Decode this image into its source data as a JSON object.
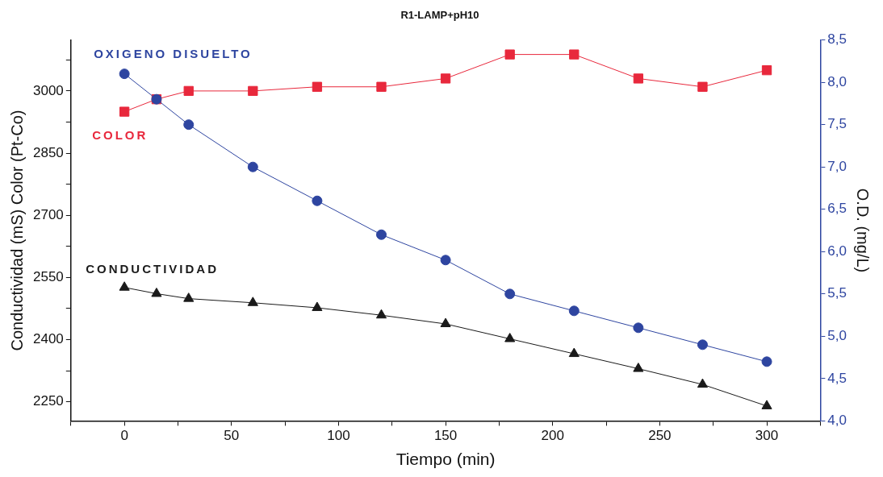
{
  "chart_data": {
    "type": "line",
    "title": "R1-LAMP+pH10",
    "xlabel": "Tiempo (min)",
    "ylabel": "Conductividad (mS) Color (Pt-Co)",
    "y2label": "O.D. (mg/L)",
    "x": [
      0,
      15,
      30,
      60,
      90,
      120,
      150,
      180,
      210,
      240,
      270,
      300
    ],
    "series": [
      {
        "name": "COLOR",
        "color": "#e8283c",
        "marker": "square",
        "values": [
          2950,
          2980,
          3000,
          3000,
          3010,
          3010,
          3030,
          3088,
          3088,
          3030,
          3010,
          3050
        ]
      },
      {
        "name": "CONDUCTIVIDAD",
        "color": "#1a1a1a",
        "marker": "triangle",
        "values": [
          2526,
          2511,
          2499,
          2489,
          2477,
          2459,
          2438,
          2402,
          2366,
          2330,
          2292,
          2240
        ]
      },
      {
        "name": "OXIGENO DISUELTO",
        "color": "#2e45a0",
        "marker": "circle",
        "axis": "y2",
        "values": [
          8.1,
          7.8,
          7.5,
          7.0,
          6.6,
          6.2,
          5.9,
          5.5,
          5.3,
          5.1,
          4.9,
          4.7
        ]
      }
    ],
    "xlim": [
      -25,
      325
    ],
    "xticks": [
      {
        "value": -25,
        "label": null
      },
      0,
      {
        "value": 25,
        "label": null
      },
      50,
      {
        "value": 75,
        "label": null
      },
      100,
      {
        "value": 125,
        "label": null
      },
      150,
      {
        "value": 175,
        "label": null
      },
      200,
      {
        "value": 225,
        "label": null
      },
      250,
      {
        "value": 275,
        "label": null
      },
      300,
      {
        "value": 325,
        "label": null
      }
    ],
    "ylim": [
      2204,
      3123
    ],
    "yticks": [
      2250,
      {
        "value": 2325,
        "label": null
      },
      2400,
      {
        "value": 2475,
        "label": null
      },
      2550,
      {
        "value": 2625,
        "label": null
      },
      2700,
      {
        "value": 2775,
        "label": null
      },
      2850,
      {
        "value": 2925,
        "label": null
      },
      3000,
      {
        "value": 3075,
        "label": null
      }
    ],
    "y2lim": [
      4.0,
      8.5
    ],
    "y2ticks": [
      {
        "value": 4.0,
        "label": "4,0"
      },
      {
        "value": 4.5,
        "label": "4,5"
      },
      {
        "value": 5.0,
        "label": "5,0"
      },
      {
        "value": 5.5,
        "label": "5,5"
      },
      {
        "value": 6.0,
        "label": "6,0"
      },
      {
        "value": 6.5,
        "label": "6,5"
      },
      {
        "value": 7.0,
        "label": "7,0"
      },
      {
        "value": 7.5,
        "label": "7,5"
      },
      {
        "value": 8.0,
        "label": "8,0"
      },
      {
        "value": 8.5,
        "label": "8,5"
      }
    ],
    "grid": false,
    "legend": false
  }
}
